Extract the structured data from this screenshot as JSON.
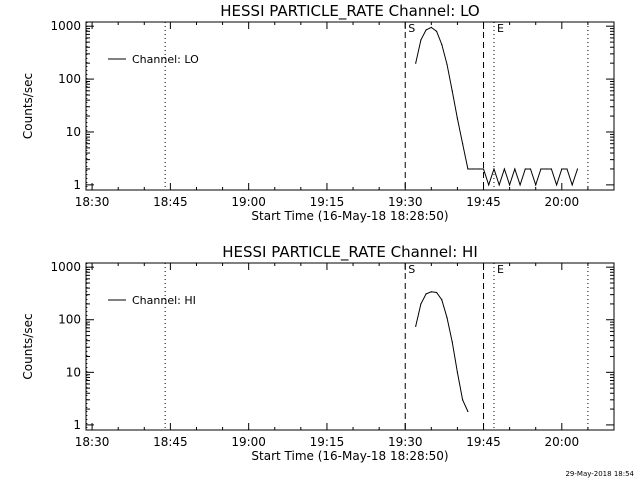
{
  "timestamp": "29-May-2018 18:54",
  "chart_data": [
    {
      "type": "line",
      "title": "HESSI PARTICLE_RATE Channel: LO",
      "xlabel": "Start Time (16-May-18 18:28:50)",
      "ylabel": "Counts/sec",
      "xlim": [
        "18:28:50",
        "20:10:00"
      ],
      "ylim": [
        0.8,
        1200
      ],
      "yscale": "log",
      "xticks": [
        "18:30",
        "18:45",
        "19:00",
        "19:15",
        "19:30",
        "19:45",
        "20:00"
      ],
      "yticks": [
        "1",
        "10",
        "100",
        "1000"
      ],
      "legend": "top-left",
      "series": [
        {
          "name": "Channel: LO",
          "x": [
            "19:32",
            "19:33",
            "19:34",
            "19:35",
            "19:36",
            "19:37",
            "19:38",
            "19:39",
            "19:40",
            "19:41",
            "19:42",
            "19:43",
            "19:44",
            "19:45",
            "19:46",
            "19:47",
            "19:48",
            "19:49",
            "19:50",
            "19:51",
            "19:52",
            "19:53",
            "19:54",
            "19:55",
            "19:56",
            "19:57",
            "19:58",
            "19:59",
            "20:00",
            "20:01",
            "20:02",
            "20:03"
          ],
          "y": [
            200,
            550,
            850,
            950,
            800,
            450,
            190,
            60,
            18,
            6,
            2,
            2,
            2,
            2,
            1,
            2,
            1,
            2,
            1,
            2,
            1,
            2,
            2,
            1,
            2,
            2,
            2,
            1,
            2,
            2,
            1,
            2
          ]
        }
      ],
      "markers": [
        {
          "label": "S",
          "time": "19:30",
          "style": "dashed"
        },
        {
          "label": "E",
          "time": "19:47",
          "style": "dotted"
        }
      ],
      "reference_lines": [
        {
          "time": "18:29",
          "style": "dotted"
        },
        {
          "time": "18:44",
          "style": "dotted"
        },
        {
          "time": "19:45",
          "style": "dashed"
        },
        {
          "time": "20:05",
          "style": "dotted"
        }
      ]
    },
    {
      "type": "line",
      "title": "HESSI PARTICLE_RATE Channel: HI",
      "xlabel": "Start Time (16-May-18 18:28:50)",
      "ylabel": "Counts/sec",
      "xlim": [
        "18:28:50",
        "20:10:00"
      ],
      "ylim": [
        0.8,
        1200
      ],
      "yscale": "log",
      "xticks": [
        "18:30",
        "18:45",
        "19:00",
        "19:15",
        "19:30",
        "19:45",
        "20:00"
      ],
      "yticks": [
        "1",
        "10",
        "100",
        "1000"
      ],
      "legend": "top-left",
      "series": [
        {
          "name": "Channel: HI",
          "x": [
            "19:32",
            "19:33",
            "19:34",
            "19:35",
            "19:36",
            "19:37",
            "19:38",
            "19:39",
            "19:40",
            "19:41",
            "19:42"
          ],
          "y": [
            75,
            200,
            310,
            340,
            330,
            240,
            110,
            38,
            10,
            3,
            1.8
          ]
        }
      ],
      "markers": [
        {
          "label": "S",
          "time": "19:30",
          "style": "dashed"
        },
        {
          "label": "E",
          "time": "19:47",
          "style": "dotted"
        }
      ],
      "reference_lines": [
        {
          "time": "18:29",
          "style": "dotted"
        },
        {
          "time": "18:44",
          "style": "dotted"
        },
        {
          "time": "19:45",
          "style": "dashed"
        },
        {
          "time": "20:05",
          "style": "dotted"
        }
      ]
    }
  ]
}
